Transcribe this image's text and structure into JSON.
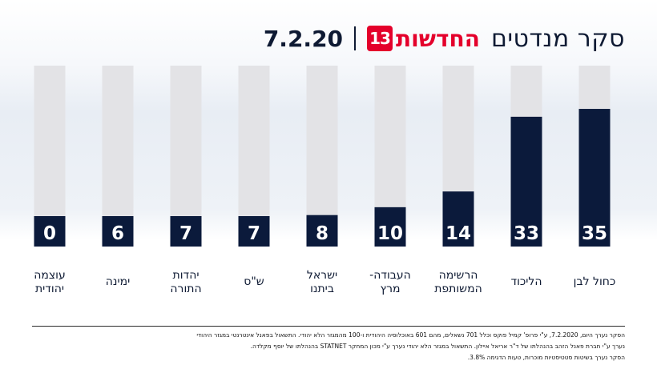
{
  "header": {
    "title": "סקר מנדטים",
    "brand_text": "החדשות",
    "logo_text": "13",
    "date": "7.2.20"
  },
  "chart_data": {
    "type": "bar",
    "categories": [
      "כחול לבן",
      "הליכוד",
      "הרשימה המשותפת",
      "העבודה-מרץ",
      "ישראל ביתנו",
      "ש\"ס",
      "יהדות התורה",
      "ימינה",
      "עוצמה יהודית"
    ],
    "category_lines": [
      [
        "כחול לבן"
      ],
      [
        "הליכוד"
      ],
      [
        "הרשימה",
        "המשותפת"
      ],
      [
        "העבודה-",
        "מרץ"
      ],
      [
        "ישראל",
        "ביתנו"
      ],
      [
        "ש\"ס"
      ],
      [
        "יהדות",
        "התורה"
      ],
      [
        "ימינה"
      ],
      [
        "עוצמה",
        "יהודית"
      ]
    ],
    "values": [
      35,
      33,
      14,
      10,
      8,
      7,
      7,
      6,
      0
    ],
    "ylim": [
      0,
      46
    ],
    "order": "right-to-left",
    "colors": {
      "bar": "#0b1a3b",
      "track": "#e3e3e6",
      "value_text": "#ffffff"
    }
  },
  "footer": {
    "lines": [
      "הסקר נערך היום, 7.2.2020, ע\"י פרופ' קמיל פוקס וכלל 701 נשאלים, מהם 601 באוכלוסיה היהודית ו-100 מהמגזר הלא יהודי. התשאול בפאנל אינטרנטי במגזר היהודי",
      "נערך ע\"י חברת  פאנל הזהב  בהנהלתו של ד\"ר אריאל איילון. התשאול במגזר הלא יהודי נערך ע\"י מכון המחקר STATNET בהנהלתו של יוסף מקלדה.",
      "הסקר נערך בשיטות סטטיסטיות מוכרות, טעות הדגימה 3.8%."
    ]
  }
}
